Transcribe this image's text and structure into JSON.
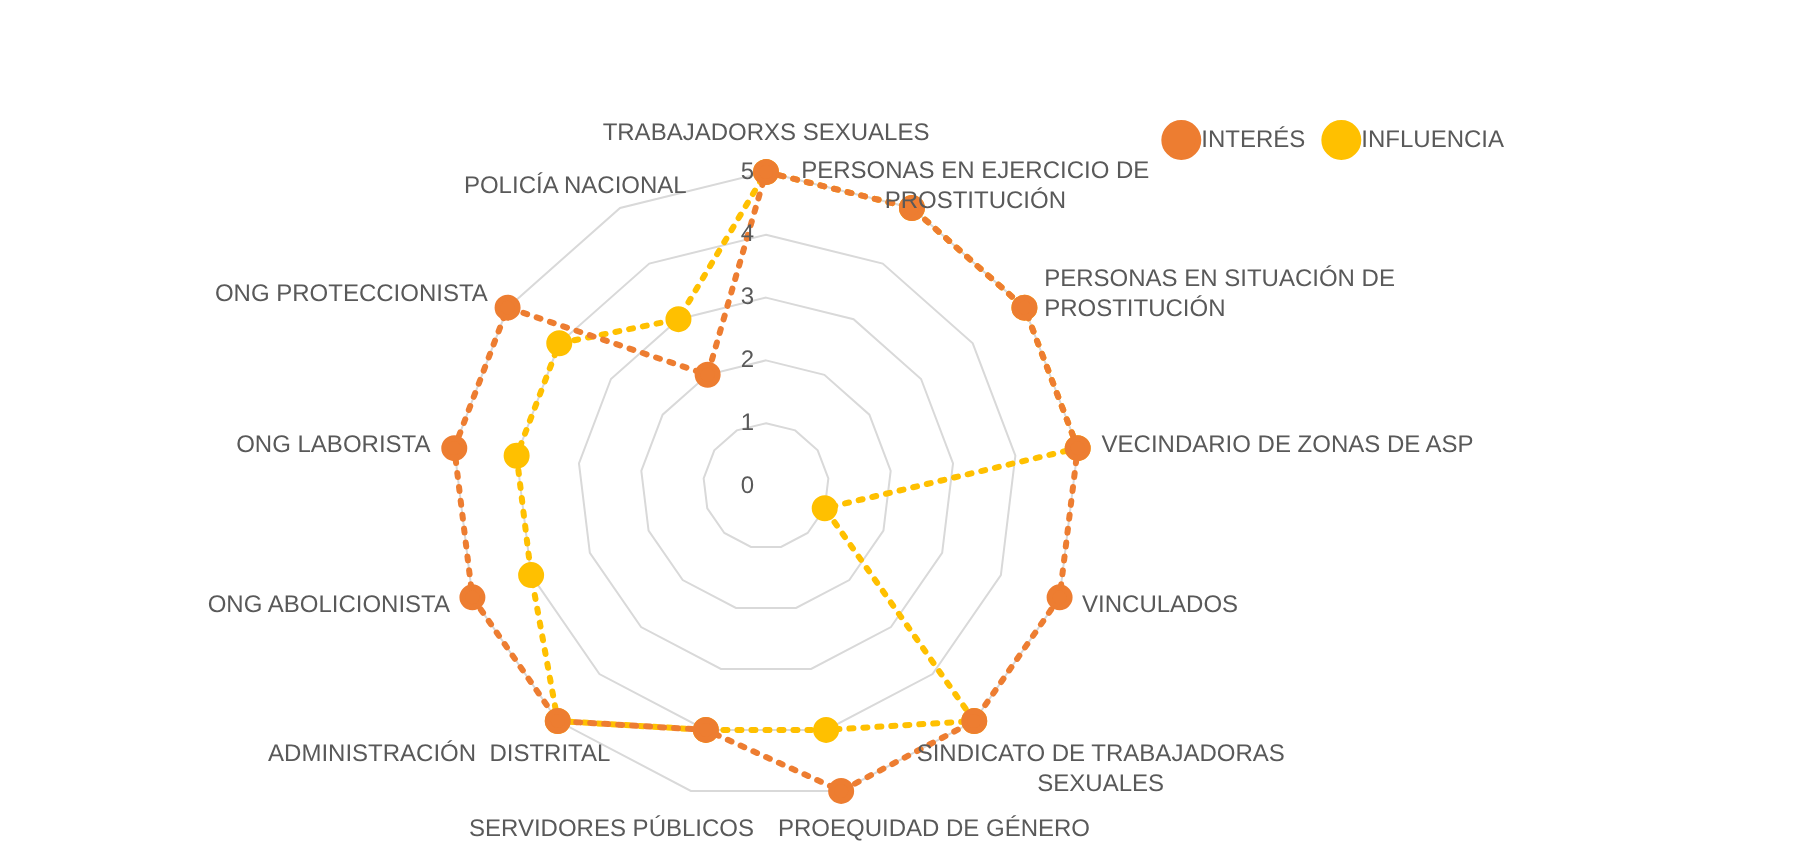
{
  "chart_data": {
    "type": "radar",
    "categories": [
      "TRABAJADORXS SEXUALES",
      "PERSONAS EN EJERCICIO DE PROSTITUCIÓN",
      "PERSONAS EN SITUACIÓN DE PROSTITUCIÓN",
      "VECINDARIO DE ZONAS DE ASP",
      "VINCULADOS",
      "SINDICATO DE TRABAJADORAS SEXUALES",
      "PROEQUIDAD DE GÉNERO",
      "SERVIDORES PÚBLICOS",
      "ADMINISTRACIÓN  DISTRITAL",
      "ONG ABOLICIONISTA",
      "ONG LABORISTA",
      "ONG PROTECCIONISTA",
      "POLICÍA NACIONAL"
    ],
    "series": [
      {
        "name": "INTERÉS",
        "color": "#ed7d31",
        "values": [
          5,
          5,
          5,
          5,
          5,
          5,
          5,
          4,
          5,
          5,
          5,
          5,
          2
        ]
      },
      {
        "name": "INFLUENCIA",
        "color": "#ffc000",
        "values": [
          5,
          5,
          5,
          5,
          1,
          5,
          4,
          4,
          5,
          4,
          4,
          4,
          3
        ]
      }
    ],
    "ylim": [
      0,
      5
    ],
    "yticks": [
      0,
      1,
      2,
      3,
      4,
      5
    ],
    "grid": true,
    "legend": "top right",
    "marker": "circle",
    "line_style": "dotted"
  }
}
